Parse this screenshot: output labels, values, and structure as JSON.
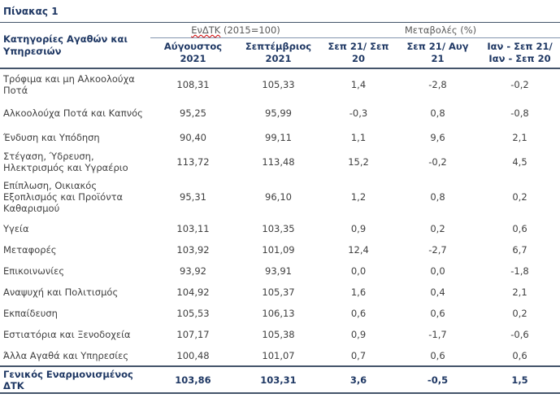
{
  "title": "Πίνακας 1",
  "header": {
    "category": "Κατηγορίες Αγαθών και Υπηρεσιών",
    "group1": "ΕνΔΤΚ",
    "group1_suffix": " (2015=100)",
    "group2": "Μεταβολές (%)",
    "columns": [
      "Αύγουστος 2021",
      "Σεπτέμβριος 2021",
      "Σεπ 21/ Σεπ 20",
      "Σεπ 21/ Αυγ 21",
      "Ιαν - Σεπ 21/ Ιαν - Σεπ 20"
    ]
  },
  "rows": [
    {
      "label": "Τρόφιμα και μη Αλκοολούχα Ποτά",
      "values": [
        "108,31",
        "105,33",
        "1,4",
        "-2,8",
        "-0,2"
      ]
    },
    {
      "label": "Αλκοολούχα Ποτά και Καπνός",
      "values": [
        "95,25",
        "95,99",
        "-0,3",
        "0,8",
        "-0,8"
      ]
    },
    {
      "label": "Ένδυση και Υπόδηση",
      "values": [
        "90,40",
        "99,11",
        "1,1",
        "9,6",
        "2,1"
      ]
    },
    {
      "label": "Στέγαση, Ύδρευση, Ηλεκτρισμός και Υγραέριο",
      "values": [
        "113,72",
        "113,48",
        "15,2",
        "-0,2",
        "4,5"
      ]
    },
    {
      "label": "Επίπλωση, Οικιακός Εξοπλισμός και Προϊόντα Καθαρισμού",
      "values": [
        "95,31",
        "96,10",
        "1,2",
        "0,8",
        "0,2"
      ]
    },
    {
      "label": "Υγεία",
      "values": [
        "103,11",
        "103,35",
        "0,9",
        "0,2",
        "0,6"
      ]
    },
    {
      "label": "Μεταφορές",
      "values": [
        "103,92",
        "101,09",
        "12,4",
        "-2,7",
        "6,7"
      ]
    },
    {
      "label": "Επικοινωνίες",
      "values": [
        "93,92",
        "93,91",
        "0,0",
        "0,0",
        "-1,8"
      ]
    },
    {
      "label": "Αναψυχή και Πολιτισμός",
      "values": [
        "104,92",
        "105,37",
        "1,6",
        "0,4",
        "2,1"
      ]
    },
    {
      "label": "Εκπαίδευση",
      "values": [
        "105,53",
        "106,13",
        "0,6",
        "0,6",
        "0,2"
      ]
    },
    {
      "label": "Εστιατόρια και Ξενοδοχεία",
      "values": [
        "107,17",
        "105,38",
        "0,9",
        "-1,7",
        "-0,6"
      ]
    },
    {
      "label": "Άλλα Αγαθά και Υπηρεσίες",
      "values": [
        "100,48",
        "101,07",
        "0,7",
        "0,6",
        "0,6"
      ]
    }
  ],
  "total": {
    "label": "Γενικός Εναρμονισμένος ΔΤΚ",
    "values": [
      "103,86",
      "103,31",
      "3,6",
      "-0,5",
      "1,5"
    ]
  }
}
